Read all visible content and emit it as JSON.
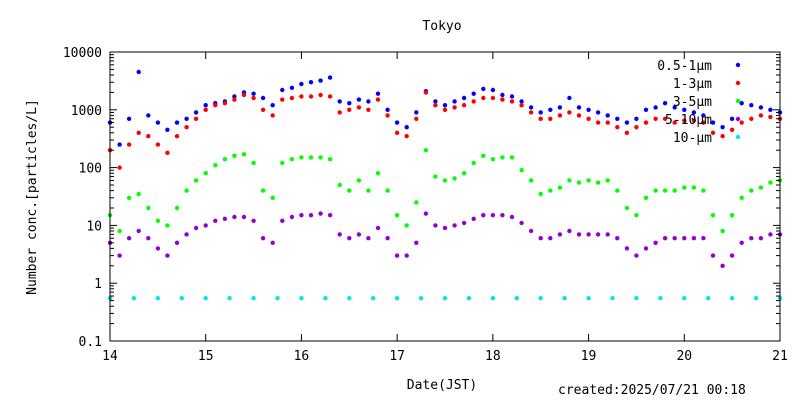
{
  "chart_data": {
    "type": "scatter",
    "title": "Tokyo",
    "xlabel": "Date(JST)",
    "ylabel": "Number conc.[particles/L]",
    "yscale": "log",
    "ylim": [
      0.1,
      10000
    ],
    "xlim": [
      14,
      21
    ],
    "x_ticks": [
      "14",
      "15",
      "16",
      "17",
      "18",
      "19",
      "20",
      "21"
    ],
    "y_ticks": [
      "0.1",
      "1",
      "10",
      "100",
      "1000",
      "10000"
    ],
    "grid": false,
    "legend_position": "top-right",
    "series": [
      {
        "name": "0.5-1μm",
        "color": "#0000ff",
        "x": [
          14.0,
          14.1,
          14.2,
          14.3,
          14.4,
          14.5,
          14.6,
          14.7,
          14.8,
          14.9,
          15.0,
          15.1,
          15.2,
          15.3,
          15.4,
          15.5,
          15.6,
          15.7,
          15.8,
          15.9,
          16.0,
          16.1,
          16.2,
          16.3,
          16.4,
          16.5,
          16.6,
          16.7,
          16.8,
          16.9,
          17.0,
          17.1,
          17.2,
          17.3,
          17.4,
          17.5,
          17.6,
          17.7,
          17.8,
          17.9,
          18.0,
          18.1,
          18.2,
          18.3,
          18.4,
          18.5,
          18.6,
          18.7,
          18.8,
          18.9,
          19.0,
          19.1,
          19.2,
          19.3,
          19.4,
          19.5,
          19.6,
          19.7,
          19.8,
          19.9,
          20.0,
          20.1,
          20.2,
          20.3,
          20.4,
          20.5,
          20.6,
          20.7,
          20.8,
          20.9,
          21.0
        ],
        "y": [
          600,
          250,
          700,
          4500,
          800,
          600,
          450,
          600,
          700,
          900,
          1200,
          1300,
          1400,
          1700,
          2000,
          1900,
          1600,
          1200,
          2200,
          2400,
          2800,
          3000,
          3200,
          3600,
          1400,
          1300,
          1500,
          1400,
          1900,
          1000,
          600,
          500,
          900,
          2100,
          1400,
          1200,
          1400,
          1600,
          1900,
          2300,
          2200,
          1800,
          1700,
          1400,
          1100,
          900,
          1000,
          1100,
          1600,
          1100,
          1000,
          900,
          800,
          700,
          600,
          700,
          1000,
          1100,
          1300,
          1100,
          1000,
          900,
          800,
          600,
          500,
          700,
          1300,
          1200,
          1100,
          1000,
          900
        ]
      },
      {
        "name": "1-3μm",
        "color": "#ff0000",
        "x": [
          14.0,
          14.1,
          14.2,
          14.3,
          14.4,
          14.5,
          14.6,
          14.7,
          14.8,
          14.9,
          15.0,
          15.1,
          15.2,
          15.3,
          15.4,
          15.5,
          15.6,
          15.7,
          15.8,
          15.9,
          16.0,
          16.1,
          16.2,
          16.3,
          16.4,
          16.5,
          16.6,
          16.7,
          16.8,
          16.9,
          17.0,
          17.1,
          17.2,
          17.3,
          17.4,
          17.5,
          17.6,
          17.7,
          17.8,
          17.9,
          18.0,
          18.1,
          18.2,
          18.3,
          18.4,
          18.5,
          18.6,
          18.7,
          18.8,
          18.9,
          19.0,
          19.1,
          19.2,
          19.3,
          19.4,
          19.5,
          19.6,
          19.7,
          19.8,
          19.9,
          20.0,
          20.1,
          20.2,
          20.3,
          20.4,
          20.5,
          20.6,
          20.7,
          20.8,
          20.9,
          21.0
        ],
        "y": [
          200,
          100,
          250,
          400,
          350,
          250,
          180,
          350,
          500,
          700,
          1000,
          1200,
          1300,
          1500,
          1800,
          1600,
          1000,
          800,
          1500,
          1600,
          1700,
          1700,
          1800,
          1700,
          900,
          1000,
          1100,
          1000,
          1500,
          800,
          400,
          350,
          700,
          2000,
          1200,
          1000,
          1100,
          1200,
          1400,
          1600,
          1600,
          1500,
          1400,
          1200,
          900,
          700,
          700,
          800,
          900,
          800,
          700,
          600,
          600,
          500,
          400,
          500,
          600,
          700,
          700,
          600,
          650,
          650,
          600,
          400,
          350,
          450,
          600,
          700,
          800,
          750,
          700
        ]
      },
      {
        "name": "3-5μm",
        "color": "#00ff00",
        "x": [
          14.0,
          14.1,
          14.2,
          14.3,
          14.4,
          14.5,
          14.6,
          14.7,
          14.8,
          14.9,
          15.0,
          15.1,
          15.2,
          15.3,
          15.4,
          15.5,
          15.6,
          15.7,
          15.8,
          15.9,
          16.0,
          16.1,
          16.2,
          16.3,
          16.4,
          16.5,
          16.6,
          16.7,
          16.8,
          16.9,
          17.0,
          17.1,
          17.2,
          17.3,
          17.4,
          17.5,
          17.6,
          17.7,
          17.8,
          17.9,
          18.0,
          18.1,
          18.2,
          18.3,
          18.4,
          18.5,
          18.6,
          18.7,
          18.8,
          18.9,
          19.0,
          19.1,
          19.2,
          19.3,
          19.4,
          19.5,
          19.6,
          19.7,
          19.8,
          19.9,
          20.0,
          20.1,
          20.2,
          20.3,
          20.4,
          20.5,
          20.6,
          20.7,
          20.8,
          20.9,
          21.0
        ],
        "y": [
          15,
          8,
          30,
          35,
          20,
          12,
          10,
          20,
          40,
          60,
          80,
          110,
          140,
          160,
          170,
          120,
          40,
          30,
          120,
          140,
          150,
          150,
          150,
          140,
          50,
          40,
          60,
          40,
          80,
          40,
          15,
          10,
          25,
          200,
          70,
          60,
          65,
          80,
          120,
          160,
          140,
          150,
          150,
          90,
          60,
          35,
          40,
          45,
          60,
          55,
          60,
          55,
          60,
          40,
          20,
          15,
          30,
          40,
          40,
          40,
          45,
          45,
          40,
          15,
          8,
          15,
          30,
          40,
          45,
          55,
          60
        ]
      },
      {
        "name": "5-10μm",
        "color": "#9400d3",
        "x": [
          14.0,
          14.1,
          14.2,
          14.3,
          14.4,
          14.5,
          14.6,
          14.7,
          14.8,
          14.9,
          15.0,
          15.1,
          15.2,
          15.3,
          15.4,
          15.5,
          15.6,
          15.7,
          15.8,
          15.9,
          16.0,
          16.1,
          16.2,
          16.3,
          16.4,
          16.5,
          16.6,
          16.7,
          16.8,
          16.9,
          17.0,
          17.1,
          17.2,
          17.3,
          17.4,
          17.5,
          17.6,
          17.7,
          17.8,
          17.9,
          18.0,
          18.1,
          18.2,
          18.3,
          18.4,
          18.5,
          18.6,
          18.7,
          18.8,
          18.9,
          19.0,
          19.1,
          19.2,
          19.3,
          19.4,
          19.5,
          19.6,
          19.7,
          19.8,
          19.9,
          20.0,
          20.1,
          20.2,
          20.3,
          20.4,
          20.5,
          20.6,
          20.7,
          20.8,
          20.9,
          21.0
        ],
        "y": [
          5,
          3,
          6,
          8,
          6,
          4,
          3,
          5,
          7,
          9,
          10,
          12,
          13,
          14,
          14,
          12,
          6,
          5,
          12,
          14,
          15,
          15,
          16,
          15,
          7,
          6,
          7,
          6,
          9,
          6,
          3,
          3,
          5,
          16,
          10,
          9,
          10,
          11,
          13,
          15,
          15,
          15,
          14,
          11,
          8,
          6,
          6,
          7,
          8,
          7,
          7,
          7,
          7,
          6,
          4,
          3,
          4,
          5,
          6,
          6,
          6,
          6,
          6,
          3,
          2,
          3,
          5,
          6,
          6,
          7,
          7
        ]
      },
      {
        "name": "10-μm",
        "color": "#00e5ee",
        "x": [
          14.0,
          14.25,
          14.5,
          14.75,
          15.0,
          15.25,
          15.5,
          15.75,
          16.0,
          16.25,
          16.5,
          16.75,
          17.0,
          17.25,
          17.5,
          17.75,
          18.0,
          18.25,
          18.5,
          18.75,
          19.0,
          19.25,
          19.5,
          19.75,
          20.0,
          20.25,
          20.5,
          20.75,
          21.0
        ],
        "y": [
          0.55,
          0.55,
          0.55,
          0.55,
          0.55,
          0.55,
          0.55,
          0.55,
          0.55,
          0.55,
          0.55,
          0.55,
          0.55,
          0.55,
          0.55,
          0.55,
          0.55,
          0.55,
          0.55,
          0.55,
          0.55,
          0.55,
          0.55,
          0.55,
          0.55,
          0.55,
          0.55,
          0.55,
          0.55
        ]
      }
    ]
  },
  "footer": {
    "created": "created:2025/07/21 00:18"
  }
}
